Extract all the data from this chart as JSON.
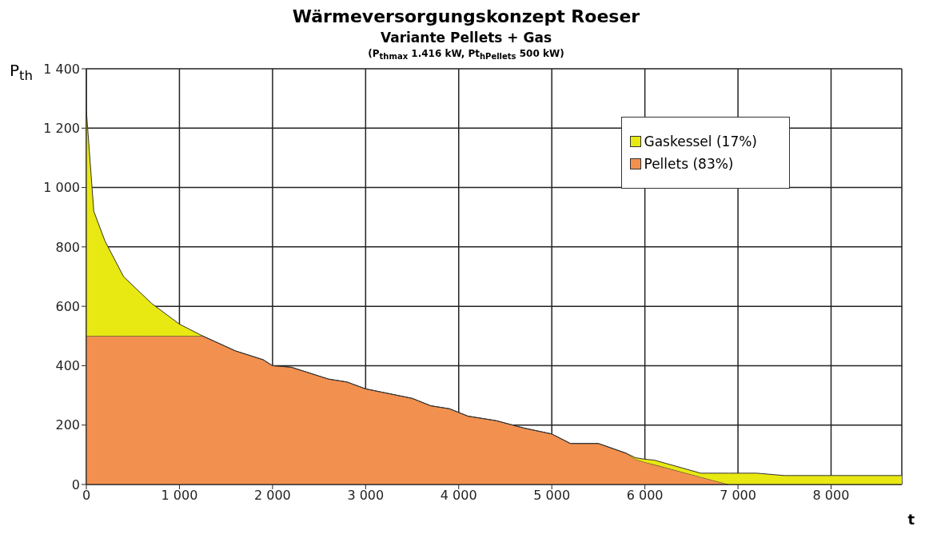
{
  "chart_data": {
    "type": "area",
    "title": "Wärmeversorgungskonzept Roeser",
    "subtitle": "Variante Pellets + Gas",
    "annotations": [
      "(P$_{thmax}$ 1.416 kW, Pt$_{hPellets}$ 500 kW)"
    ],
    "xlabel": "t",
    "ylabel": "P$_{th}$",
    "stacked": true,
    "x": [
      0,
      80,
      200,
      400,
      700,
      1000,
      1250,
      1600,
      1900,
      2000,
      2200,
      2600,
      2800,
      3000,
      3500,
      3700,
      3900,
      4100,
      4400,
      4700,
      5000,
      5200,
      5500,
      5800,
      5900,
      6000,
      6100,
      6600,
      6900,
      7200,
      7500,
      8760
    ],
    "series": [
      {
        "name": "Pellets (83%)",
        "color": "#f2904f",
        "values": [
          500,
          500,
          500,
          500,
          500,
          500,
          500,
          450,
          420,
          400,
          395,
          355,
          345,
          322,
          290,
          265,
          255,
          230,
          215,
          190,
          170,
          138,
          138,
          105,
          85,
          75,
          67,
          25,
          0,
          0,
          0,
          0
        ]
      },
      {
        "name": "Gaskessel (17%)",
        "color": "#e8e812",
        "values": [
          760,
          420,
          320,
          200,
          110,
          40,
          0,
          0,
          0,
          0,
          0,
          0,
          0,
          0,
          0,
          0,
          0,
          0,
          0,
          0,
          0,
          0,
          0,
          0,
          5,
          10,
          15,
          13,
          38,
          38,
          30,
          30
        ]
      }
    ],
    "xlim": [
      0,
      8760
    ],
    "xticks": [
      0,
      {
        "value": 1000,
        "label": "1 000"
      },
      {
        "value": 2000,
        "label": "2 000"
      },
      {
        "value": 3000,
        "label": "3 000"
      },
      {
        "value": 4000,
        "label": "4 000"
      },
      {
        "value": 5000,
        "label": "5 000"
      },
      {
        "value": 6000,
        "label": "6 000"
      },
      {
        "value": 7000,
        "label": "7 000"
      },
      {
        "value": 8000,
        "label": "8 000"
      }
    ],
    "ylim": [
      0,
      1400
    ],
    "yticks": [
      0,
      200,
      400,
      600,
      800,
      {
        "value": 1000,
        "label": "1 000"
      },
      {
        "value": 1200,
        "label": "1 200"
      },
      {
        "value": 1400,
        "label": "1 400"
      }
    ],
    "grid": true,
    "legend": "top right"
  }
}
